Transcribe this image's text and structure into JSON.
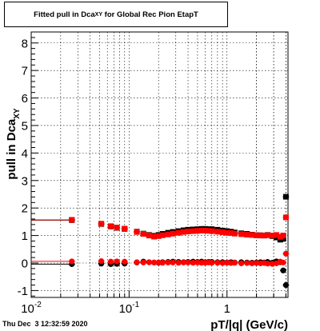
{
  "canvas_footer": "Thu Dec  3 12:32:59 2020",
  "chart_data": {
    "type": "scatter",
    "title_main": "Fitted pull in Dca",
    "title_sub": "XY",
    "title_rest": " for Global Rec Pion EtapT",
    "xlabel": "pT/|q| (GeV/c)",
    "ylabel_main": "pull in Dca",
    "ylabel_sub": "XY",
    "x_scale": "log",
    "xlim": [
      0.01,
      4.2
    ],
    "ylim": [
      -1.25,
      8.4
    ],
    "grid": true,
    "x_ticks": [
      {
        "value": 0.01,
        "base": "10",
        "exp": "-2"
      },
      {
        "value": 0.1,
        "base": "10",
        "exp": "-1"
      },
      {
        "value": 1,
        "base": "1",
        "exp": ""
      }
    ],
    "y_ticks": [
      "-1",
      "0",
      "1",
      "2",
      "3",
      "4",
      "5",
      "6",
      "7",
      "8"
    ],
    "series": [
      {
        "color": "#000000",
        "marker": "square",
        "x": [
          0.026,
          0.052,
          0.065,
          0.075,
          0.09,
          0.12,
          0.14,
          0.16,
          0.18,
          0.2,
          0.22,
          0.25,
          0.28,
          0.32,
          0.36,
          0.4,
          0.45,
          0.5,
          0.55,
          0.6,
          0.65,
          0.7,
          0.8,
          0.9,
          1.0,
          1.1,
          1.2,
          1.4,
          1.6,
          1.8,
          2.0,
          2.2,
          2.4,
          2.6,
          2.9,
          3.2,
          3.5,
          3.75,
          4.0
        ],
        "y": [
          1.56,
          1.42,
          1.33,
          1.28,
          1.24,
          1.14,
          1.07,
          1.02,
          0.99,
          1.02,
          1.06,
          1.1,
          1.13,
          1.16,
          1.19,
          1.21,
          1.22,
          1.23,
          1.24,
          1.24,
          1.23,
          1.23,
          1.21,
          1.18,
          1.16,
          1.14,
          1.11,
          1.08,
          1.06,
          1.03,
          1.01,
          1.01,
          1.0,
          1.02,
          0.98,
          0.93,
          0.85,
          0.88,
          2.41
        ]
      },
      {
        "color": "#ff0000",
        "marker": "square",
        "x": [
          0.026,
          0.052,
          0.065,
          0.075,
          0.09,
          0.12,
          0.14,
          0.16,
          0.18,
          0.2,
          0.22,
          0.25,
          0.28,
          0.32,
          0.36,
          0.4,
          0.45,
          0.5,
          0.55,
          0.6,
          0.65,
          0.7,
          0.8,
          0.9,
          1.0,
          1.1,
          1.2,
          1.4,
          1.6,
          1.8,
          2.0,
          2.2,
          2.4,
          2.6,
          2.9,
          3.2,
          3.5,
          3.75,
          4.0
        ],
        "y": [
          1.57,
          1.43,
          1.34,
          1.29,
          1.25,
          1.13,
          1.06,
          1.0,
          0.96,
          0.98,
          1.01,
          1.04,
          1.07,
          1.1,
          1.13,
          1.15,
          1.16,
          1.17,
          1.18,
          1.18,
          1.17,
          1.16,
          1.14,
          1.12,
          1.1,
          1.09,
          1.07,
          1.05,
          1.03,
          1.02,
          1.01,
          1.0,
          1.0,
          1.01,
          1.0,
          1.02,
          0.95,
          1.0,
          1.66
        ]
      },
      {
        "color": "#000000",
        "marker": "circle",
        "x": [
          0.026,
          0.052,
          0.065,
          0.075,
          0.09,
          0.12,
          0.14,
          0.16,
          0.18,
          0.2,
          0.22,
          0.25,
          0.28,
          0.32,
          0.36,
          0.4,
          0.45,
          0.5,
          0.55,
          0.6,
          0.65,
          0.7,
          0.8,
          0.9,
          1.0,
          1.1,
          1.2,
          1.4,
          1.6,
          1.8,
          2.0,
          2.2,
          2.4,
          2.6,
          2.9,
          3.2,
          3.5,
          3.75,
          4.0
        ],
        "y": [
          -0.04,
          -0.02,
          -0.04,
          -0.03,
          -0.02,
          0.02,
          0.05,
          0.03,
          0.02,
          0.01,
          0.03,
          0.04,
          0.05,
          0.04,
          0.03,
          0.04,
          0.05,
          0.04,
          0.05,
          0.03,
          0.04,
          0.04,
          0.03,
          0.03,
          0.02,
          0.03,
          0.02,
          0.03,
          0.02,
          0.01,
          0.02,
          0.03,
          0.02,
          0.04,
          0.01,
          0.06,
          0.03,
          -0.27,
          -0.8
        ]
      },
      {
        "color": "#ff0000",
        "marker": "circle",
        "x": [
          0.026,
          0.052,
          0.065,
          0.075,
          0.09,
          0.12,
          0.14,
          0.16,
          0.18,
          0.2,
          0.22,
          0.25,
          0.28,
          0.32,
          0.36,
          0.4,
          0.45,
          0.5,
          0.55,
          0.6,
          0.65,
          0.7,
          0.8,
          0.9,
          1.0,
          1.1,
          1.2,
          1.4,
          1.6,
          1.8,
          2.0,
          2.2,
          2.4,
          2.6,
          2.9,
          3.2,
          3.5,
          3.75,
          4.0
        ],
        "y": [
          0.06,
          0.07,
          0.05,
          0.06,
          0.05,
          0.03,
          0.02,
          0.03,
          0.02,
          0.02,
          0.01,
          0.02,
          0.02,
          0.01,
          0.02,
          0.02,
          0.01,
          0.02,
          0.01,
          0.01,
          0.02,
          0.01,
          0.01,
          0.0,
          0.01,
          0.0,
          0.01,
          -0.01,
          0.0,
          -0.01,
          0.0,
          -0.01,
          0.0,
          -0.02,
          -0.03,
          -0.01,
          0.05,
          0.02,
          0.34
        ]
      }
    ]
  }
}
